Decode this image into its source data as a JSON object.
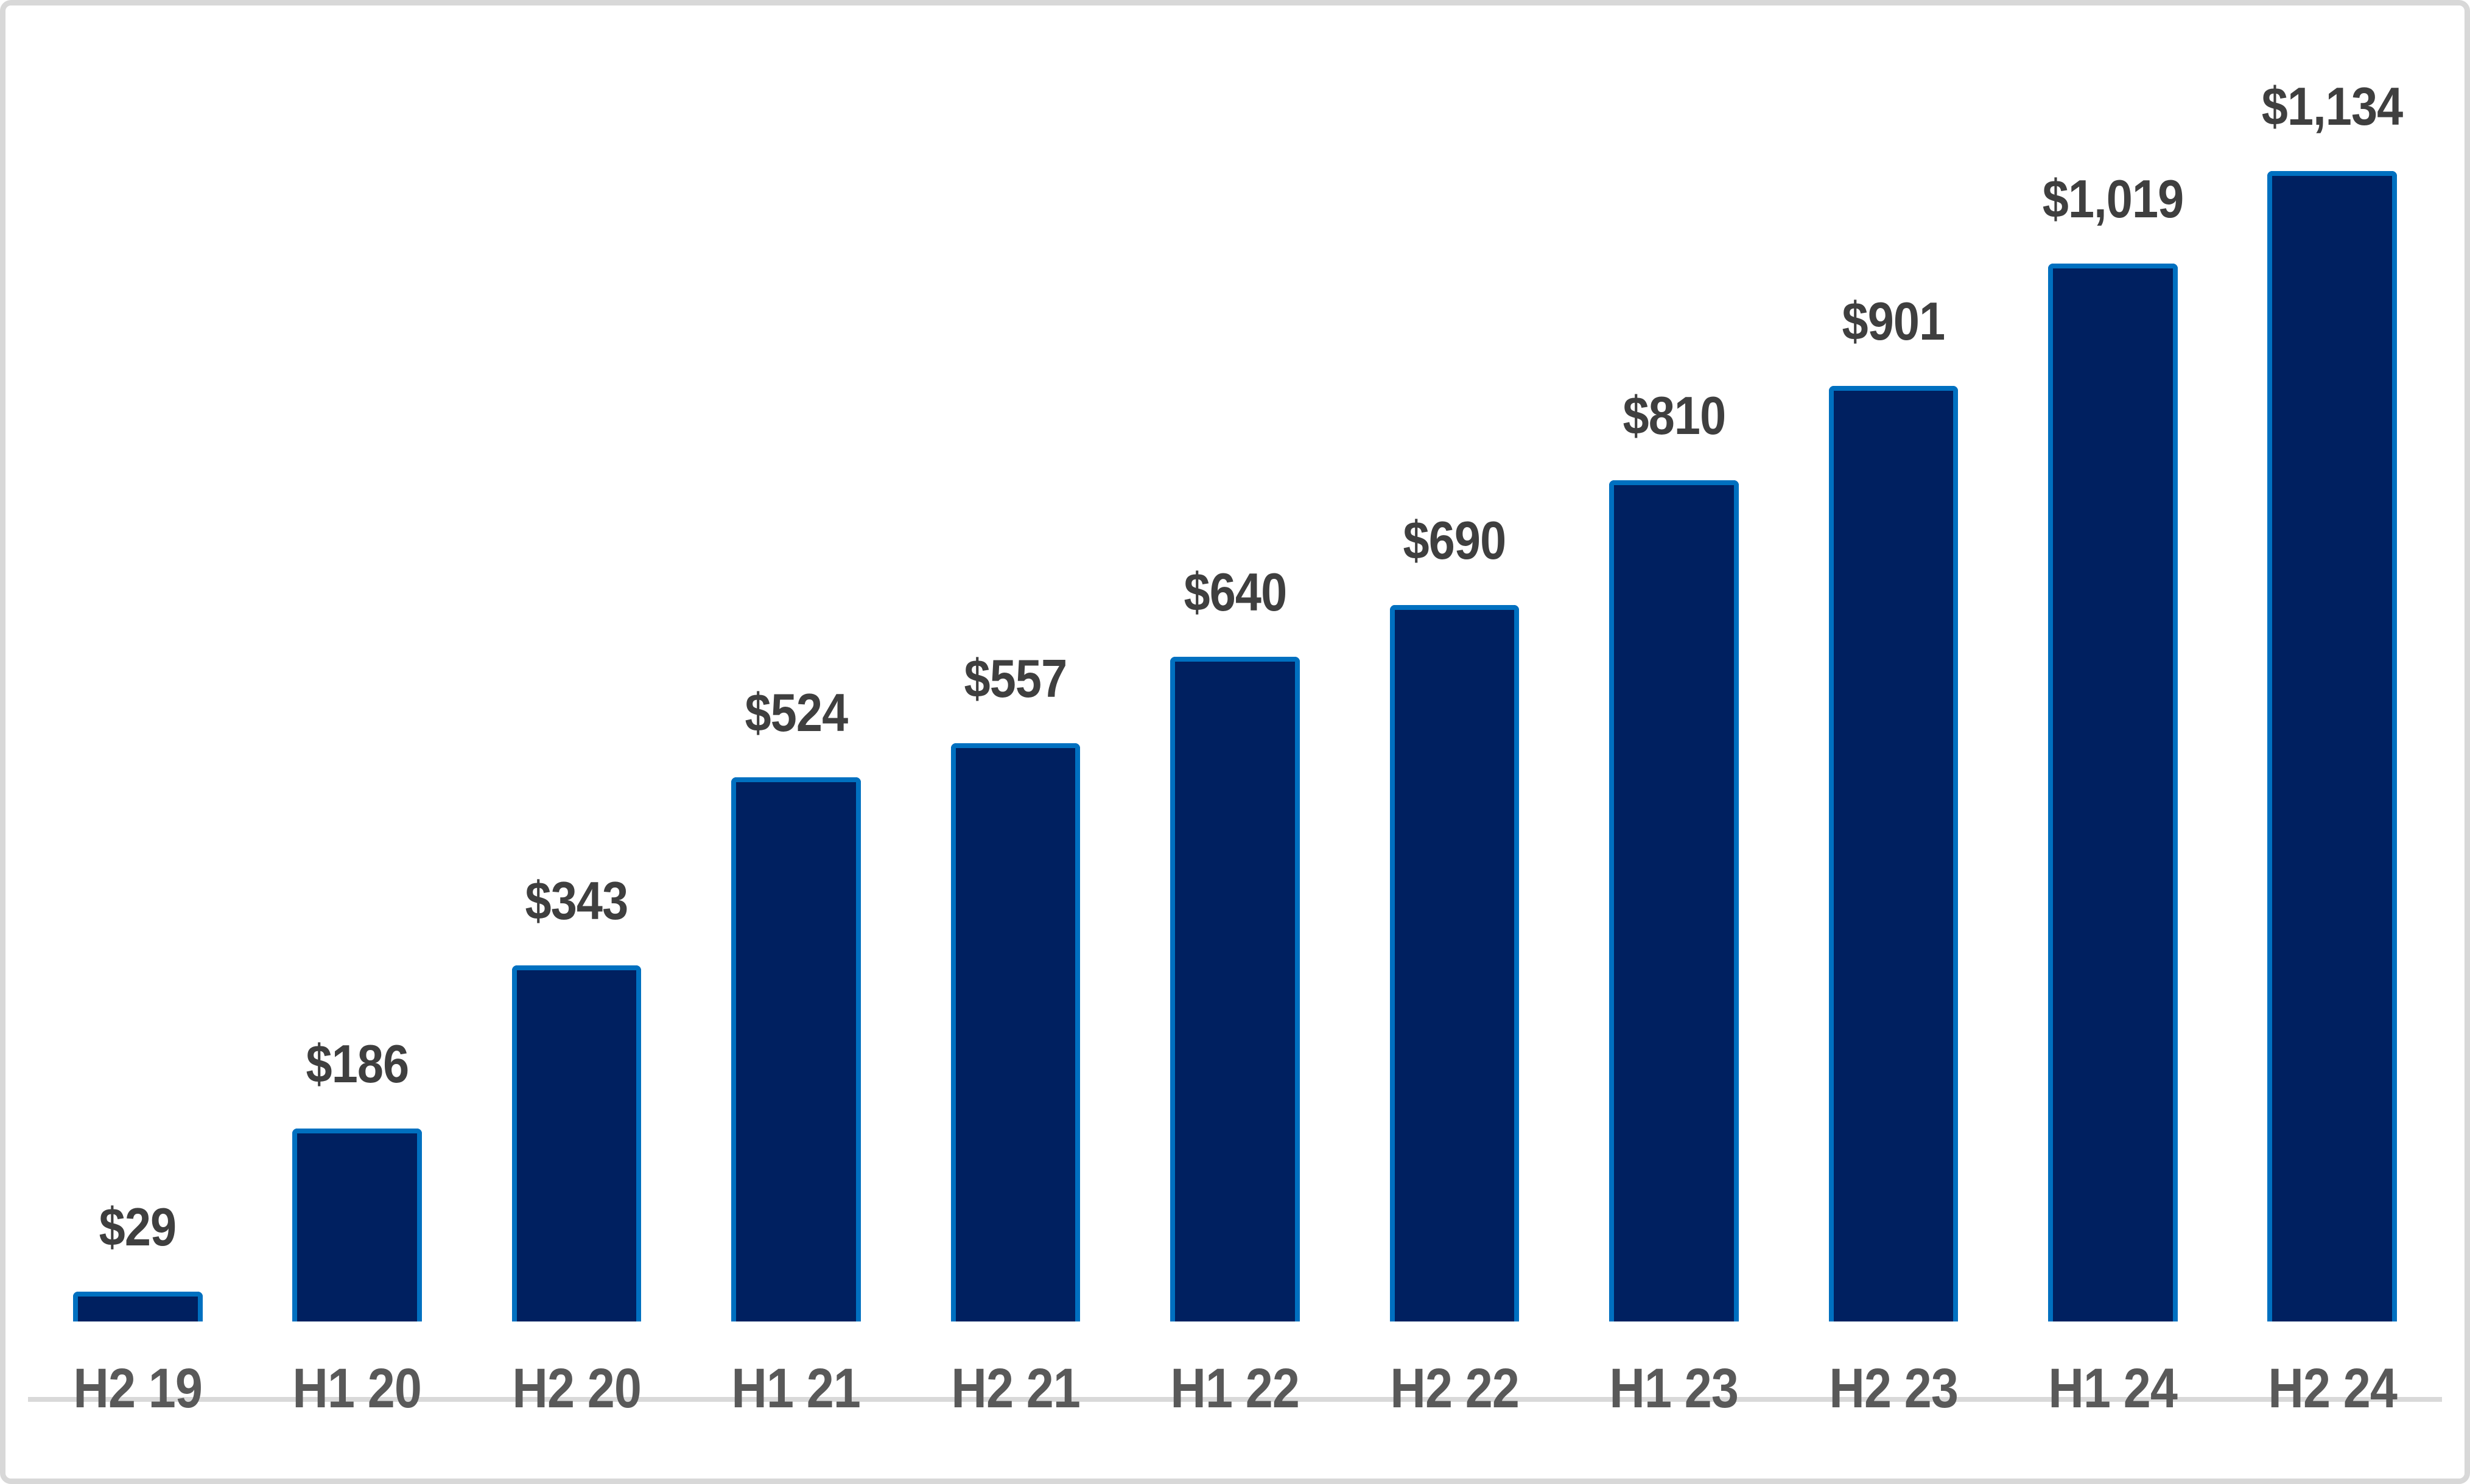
{
  "chart_data": {
    "type": "bar",
    "title": "",
    "xlabel": "",
    "ylabel": "",
    "categories": [
      "H2 19",
      "H1 20",
      "H2 20",
      "H1 21",
      "H2 21",
      "H1 22",
      "H2 22",
      "H1 23",
      "H2 23",
      "H1 24",
      "H2 24"
    ],
    "values": [
      29,
      186,
      343,
      524,
      557,
      640,
      690,
      810,
      901,
      1019,
      1134
    ],
    "value_labels": [
      "$29",
      "$186",
      "$343",
      "$524",
      "$557",
      "$640",
      "$690",
      "$810",
      "$901",
      "$1,019",
      "$1,134"
    ],
    "ylim": [
      0,
      1200
    ],
    "grid": false,
    "legend": "none",
    "colors": {
      "bar_fill": "#002060",
      "bar_border": "#0070C0",
      "value_label": "#3F3F3F",
      "axis_label": "#595959",
      "axis_line": "#D9D9D9",
      "frame_border": "#D8D8D8",
      "background": "#FFFFFF"
    }
  }
}
